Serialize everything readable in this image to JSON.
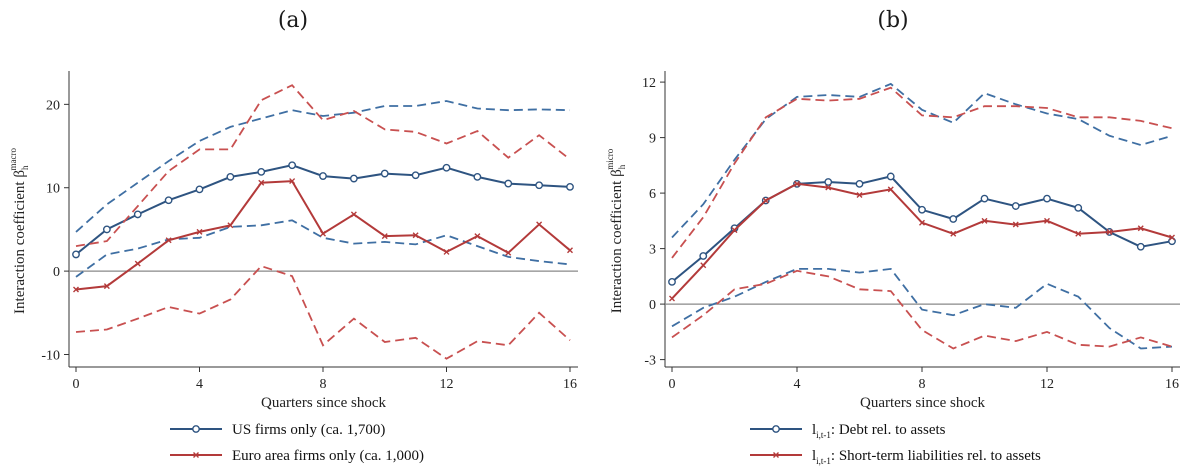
{
  "panels": [
    {
      "letter": "(a)"
    },
    {
      "letter": "(b)"
    }
  ],
  "colors": {
    "navy": "#2e5481",
    "red": "#b33a3a",
    "navy_band": "#3f6fa3",
    "red_band": "#c85050",
    "zero": "#888888",
    "axis": "#333333"
  },
  "chart_data": [
    {
      "type": "line",
      "title": "",
      "xlabel": "Quarters since shock",
      "ylabel": "Interaction coefficient β",
      "ylabel_sub": "h",
      "ylabel_sup": "macro",
      "xlim": [
        0,
        16
      ],
      "ylim": [
        -11.5,
        24
      ],
      "xticks": [
        0,
        4,
        8,
        12,
        16
      ],
      "yticks": [
        -10,
        0,
        10,
        20
      ],
      "x": [
        0,
        1,
        2,
        3,
        4,
        5,
        6,
        7,
        8,
        9,
        10,
        11,
        12,
        13,
        14,
        15,
        16
      ],
      "series": [
        {
          "name": "US firms only (ca. 1,700)",
          "color": "#2e5481",
          "marker": "circle",
          "values": [
            2.0,
            5.0,
            6.8,
            8.5,
            9.8,
            11.3,
            11.9,
            12.7,
            11.4,
            11.1,
            11.7,
            11.5,
            12.4,
            11.3,
            10.5,
            10.3,
            10.1
          ],
          "upper": [
            4.7,
            8.0,
            10.6,
            13.2,
            15.6,
            17.3,
            18.3,
            19.3,
            18.6,
            19.0,
            19.8,
            19.8,
            20.4,
            19.5,
            19.3,
            19.4,
            19.3
          ],
          "lower": [
            -0.7,
            2.0,
            2.7,
            3.8,
            4.0,
            5.3,
            5.5,
            6.1,
            4.0,
            3.3,
            3.5,
            3.2,
            4.3,
            3.0,
            1.7,
            1.2,
            0.8
          ]
        },
        {
          "name": "Euro area firms only (ca. 1,000)",
          "color": "#b33a3a",
          "marker": "x",
          "values": [
            -2.2,
            -1.8,
            0.9,
            3.7,
            4.7,
            5.5,
            10.6,
            10.8,
            4.5,
            6.8,
            4.2,
            4.3,
            2.3,
            4.2,
            2.2,
            5.6,
            2.5
          ],
          "upper": [
            3.0,
            3.6,
            7.8,
            12.0,
            14.6,
            14.6,
            20.5,
            22.3,
            18.1,
            19.2,
            17.0,
            16.7,
            15.3,
            16.8,
            13.6,
            16.3,
            13.4
          ],
          "lower": [
            -7.3,
            -7.0,
            -5.7,
            -4.3,
            -5.1,
            -3.4,
            0.6,
            -0.6,
            -8.9,
            -5.7,
            -8.5,
            -8.0,
            -10.5,
            -8.4,
            -8.9,
            -5.0,
            -8.3
          ]
        }
      ]
    },
    {
      "type": "line",
      "title": "",
      "xlabel": "Quarters since shock",
      "ylabel": "Interaction coefficient β",
      "ylabel_sub": "h",
      "ylabel_sup": "micro",
      "xlim": [
        0,
        16
      ],
      "ylim": [
        -3.4,
        12.6
      ],
      "xticks": [
        0,
        4,
        8,
        12,
        16
      ],
      "yticks": [
        -3,
        0,
        3,
        6,
        9,
        12
      ],
      "x": [
        0,
        1,
        2,
        3,
        4,
        5,
        6,
        7,
        8,
        9,
        10,
        11,
        12,
        13,
        14,
        15,
        16
      ],
      "series": [
        {
          "name": "l_{i,t-1}: Debt rel. to assets",
          "legend_main": "l",
          "legend_sub": "i,t-1",
          "legend_rest": ": Debt rel. to assets",
          "color": "#2e5481",
          "marker": "circle",
          "values": [
            1.2,
            2.6,
            4.1,
            5.6,
            6.5,
            6.6,
            6.5,
            6.9,
            5.1,
            4.6,
            5.7,
            5.3,
            5.7,
            5.2,
            3.9,
            3.1,
            3.4
          ],
          "upper": [
            3.6,
            5.4,
            7.8,
            10.0,
            11.2,
            11.3,
            11.2,
            11.9,
            10.5,
            9.8,
            11.4,
            10.8,
            10.3,
            10.0,
            9.1,
            8.6,
            9.1
          ],
          "lower": [
            -1.2,
            -0.2,
            0.4,
            1.2,
            1.9,
            1.9,
            1.7,
            1.9,
            -0.3,
            -0.6,
            0.0,
            -0.2,
            1.1,
            0.4,
            -1.3,
            -2.4,
            -2.3
          ]
        },
        {
          "name": "l_{i,t-1}: Short-term liabilities rel. to assets",
          "legend_main": "l",
          "legend_sub": "i,t-1",
          "legend_rest": ": Short-term liabilities rel. to assets",
          "color": "#b33a3a",
          "marker": "x",
          "values": [
            0.3,
            2.1,
            4.0,
            5.6,
            6.5,
            6.3,
            5.9,
            6.2,
            4.4,
            3.8,
            4.5,
            4.3,
            4.5,
            3.8,
            3.9,
            4.1,
            3.6
          ],
          "upper": [
            2.5,
            4.7,
            7.6,
            10.1,
            11.1,
            11.0,
            11.1,
            11.7,
            10.2,
            10.1,
            10.7,
            10.7,
            10.6,
            10.1,
            10.1,
            9.9,
            9.5
          ],
          "lower": [
            -1.8,
            -0.6,
            0.8,
            1.1,
            1.8,
            1.5,
            0.8,
            0.7,
            -1.4,
            -2.4,
            -1.7,
            -2.0,
            -1.5,
            -2.2,
            -2.3,
            -1.8,
            -2.3
          ]
        }
      ]
    }
  ]
}
